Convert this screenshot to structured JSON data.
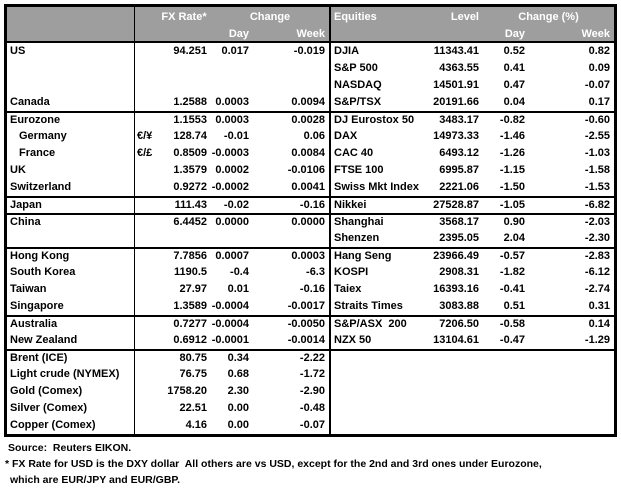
{
  "colors": {
    "header_bg": "#9e9e9e",
    "header_text": "#ffffff",
    "border": "#000000",
    "text": "#000000"
  },
  "header": {
    "fx": {
      "col_rate": "FX Rate*",
      "col_change": "Change",
      "col_day": "Day",
      "col_week": "Week"
    },
    "eq": {
      "col_name": "Equities",
      "col_level": "Level",
      "col_change": "Change (%)",
      "col_day": "Day",
      "col_week": "Week"
    }
  },
  "table_rows": [
    {
      "fx_name": "US",
      "fx_pair": "",
      "fx_rate": "94.251",
      "fx_day": "0.017",
      "fx_week": "-0.019",
      "eq_name": "DJIA",
      "eq_level": "11343.41",
      "eq_day": "0.52",
      "eq_week": "0.82",
      "group_start": false,
      "fx_indent": false
    },
    {
      "fx_name": "",
      "fx_pair": "",
      "fx_rate": "",
      "fx_day": "",
      "fx_week": "",
      "eq_name": "S&P 500",
      "eq_level": "4363.55",
      "eq_day": "0.41",
      "eq_week": "0.09",
      "group_start": false,
      "fx_indent": false
    },
    {
      "fx_name": "",
      "fx_pair": "",
      "fx_rate": "",
      "fx_day": "",
      "fx_week": "",
      "eq_name": "NASDAQ",
      "eq_level": "14501.91",
      "eq_day": "0.47",
      "eq_week": "-0.07",
      "group_start": false,
      "fx_indent": false
    },
    {
      "fx_name": "Canada",
      "fx_pair": "",
      "fx_rate": "1.2588",
      "fx_day": "0.0003",
      "fx_week": "0.0094",
      "eq_name": "S&P/TSX",
      "eq_level": "20191.66",
      "eq_day": "0.04",
      "eq_week": "0.17",
      "group_start": false,
      "fx_indent": false
    },
    {
      "fx_name": "Eurozone",
      "fx_pair": "",
      "fx_rate": "1.1553",
      "fx_day": "0.0003",
      "fx_week": "0.0028",
      "eq_name": "DJ Eurostox 50",
      "eq_level": "3483.17",
      "eq_day": "-0.82",
      "eq_week": "-0.60",
      "group_start": true,
      "fx_indent": false
    },
    {
      "fx_name": "Germany",
      "fx_pair": "€/¥",
      "fx_rate": "128.74",
      "fx_day": "-0.01",
      "fx_week": "0.06",
      "eq_name": "DAX",
      "eq_level": "14973.33",
      "eq_day": "-1.46",
      "eq_week": "-2.55",
      "group_start": false,
      "fx_indent": true
    },
    {
      "fx_name": "France",
      "fx_pair": "€/£",
      "fx_rate": "0.8509",
      "fx_day": "-0.0003",
      "fx_week": "0.0084",
      "eq_name": "CAC 40",
      "eq_level": "6493.12",
      "eq_day": "-1.26",
      "eq_week": "-1.03",
      "group_start": false,
      "fx_indent": true
    },
    {
      "fx_name": "UK",
      "fx_pair": "",
      "fx_rate": "1.3579",
      "fx_day": "0.0002",
      "fx_week": "-0.0106",
      "eq_name": "FTSE 100",
      "eq_level": "6995.87",
      "eq_day": "-1.15",
      "eq_week": "-1.58",
      "group_start": false,
      "fx_indent": false
    },
    {
      "fx_name": "Switzerland",
      "fx_pair": "",
      "fx_rate": "0.9272",
      "fx_day": "-0.0002",
      "fx_week": "0.0041",
      "eq_name": "Swiss Mkt Index",
      "eq_level": "2221.06",
      "eq_day": "-1.50",
      "eq_week": "-1.53",
      "group_start": false,
      "fx_indent": false
    },
    {
      "fx_name": "Japan",
      "fx_pair": "",
      "fx_rate": "111.43",
      "fx_day": "-0.02",
      "fx_week": "-0.16",
      "eq_name": "Nikkei",
      "eq_level": "27528.87",
      "eq_day": "-1.05",
      "eq_week": "-6.82",
      "group_start": true,
      "fx_indent": false
    },
    {
      "fx_name": "China",
      "fx_pair": "",
      "fx_rate": "6.4452",
      "fx_day": "0.0000",
      "fx_week": "0.0000",
      "eq_name": "Shanghai",
      "eq_level": "3568.17",
      "eq_day": "0.90",
      "eq_week": "-2.03",
      "group_start": true,
      "fx_indent": false
    },
    {
      "fx_name": "",
      "fx_pair": "",
      "fx_rate": "",
      "fx_day": "",
      "fx_week": "",
      "eq_name": "Shenzen",
      "eq_level": "2395.05",
      "eq_day": "2.04",
      "eq_week": "-2.30",
      "group_start": false,
      "fx_indent": false
    },
    {
      "fx_name": "Hong Kong",
      "fx_pair": "",
      "fx_rate": "7.7856",
      "fx_day": "0.0007",
      "fx_week": "0.0003",
      "eq_name": "Hang Seng",
      "eq_level": "23966.49",
      "eq_day": "-0.57",
      "eq_week": "-2.83",
      "group_start": true,
      "fx_indent": false
    },
    {
      "fx_name": "South Korea",
      "fx_pair": "",
      "fx_rate": "1190.5",
      "fx_day": "-0.4",
      "fx_week": "-6.3",
      "eq_name": "KOSPI",
      "eq_level": "2908.31",
      "eq_day": "-1.82",
      "eq_week": "-6.12",
      "group_start": false,
      "fx_indent": false
    },
    {
      "fx_name": "Taiwan",
      "fx_pair": "",
      "fx_rate": "27.97",
      "fx_day": "0.01",
      "fx_week": "-0.16",
      "eq_name": "Taiex",
      "eq_level": "16393.16",
      "eq_day": "-0.41",
      "eq_week": "-2.74",
      "group_start": false,
      "fx_indent": false
    },
    {
      "fx_name": "Singapore",
      "fx_pair": "",
      "fx_rate": "1.3589",
      "fx_day": "-0.0004",
      "fx_week": "-0.0017",
      "eq_name": "Straits Times",
      "eq_level": "3083.88",
      "eq_day": "0.51",
      "eq_week": "0.31",
      "group_start": false,
      "fx_indent": false
    },
    {
      "fx_name": "Australia",
      "fx_pair": "",
      "fx_rate": "0.7277",
      "fx_day": "-0.0004",
      "fx_week": "-0.0050",
      "eq_name": "S&P/ASX  200",
      "eq_level": "7206.50",
      "eq_day": "-0.58",
      "eq_week": "0.14",
      "group_start": true,
      "fx_indent": false
    },
    {
      "fx_name": "New Zealand",
      "fx_pair": "",
      "fx_rate": "0.6912",
      "fx_day": "-0.0001",
      "fx_week": "-0.0014",
      "eq_name": "NZX 50",
      "eq_level": "13104.61",
      "eq_day": "-0.47",
      "eq_week": "-1.29",
      "group_start": false,
      "fx_indent": false
    },
    {
      "fx_name": "Brent (ICE)",
      "fx_pair": "",
      "fx_rate": "80.75",
      "fx_day": "0.34",
      "fx_week": "-2.22",
      "eq_name": "",
      "eq_level": "",
      "eq_day": "",
      "eq_week": "",
      "group_start": true,
      "fx_indent": false
    },
    {
      "fx_name": "Light crude (NYMEX)",
      "fx_pair": "",
      "fx_rate": "76.75",
      "fx_day": "0.68",
      "fx_week": "-1.72",
      "eq_name": "",
      "eq_level": "",
      "eq_day": "",
      "eq_week": "",
      "group_start": false,
      "fx_indent": false
    },
    {
      "fx_name": "Gold (Comex)",
      "fx_pair": "",
      "fx_rate": "1758.20",
      "fx_day": "2.30",
      "fx_week": "-2.90",
      "eq_name": "",
      "eq_level": "",
      "eq_day": "",
      "eq_week": "",
      "group_start": false,
      "fx_indent": false
    },
    {
      "fx_name": "Silver (Comex)",
      "fx_pair": "",
      "fx_rate": "22.51",
      "fx_day": "0.00",
      "fx_week": "-0.48",
      "eq_name": "",
      "eq_level": "",
      "eq_day": "",
      "eq_week": "",
      "group_start": false,
      "fx_indent": false
    },
    {
      "fx_name": "Copper (Comex)",
      "fx_pair": "",
      "fx_rate": "4.16",
      "fx_day": "0.00",
      "fx_week": "-0.07",
      "eq_name": "",
      "eq_level": "",
      "eq_day": "",
      "eq_week": "",
      "group_start": false,
      "fx_indent": false
    }
  ],
  "footer": {
    "source": "Source:  Reuters EIKON.",
    "note_line1": "* FX Rate for USD is the DXY dollar  All others are vs USD, except for the 2nd and 3rd ones under Eurozone,",
    "note_line2": "which are EUR/JPY and EUR/GBP."
  }
}
